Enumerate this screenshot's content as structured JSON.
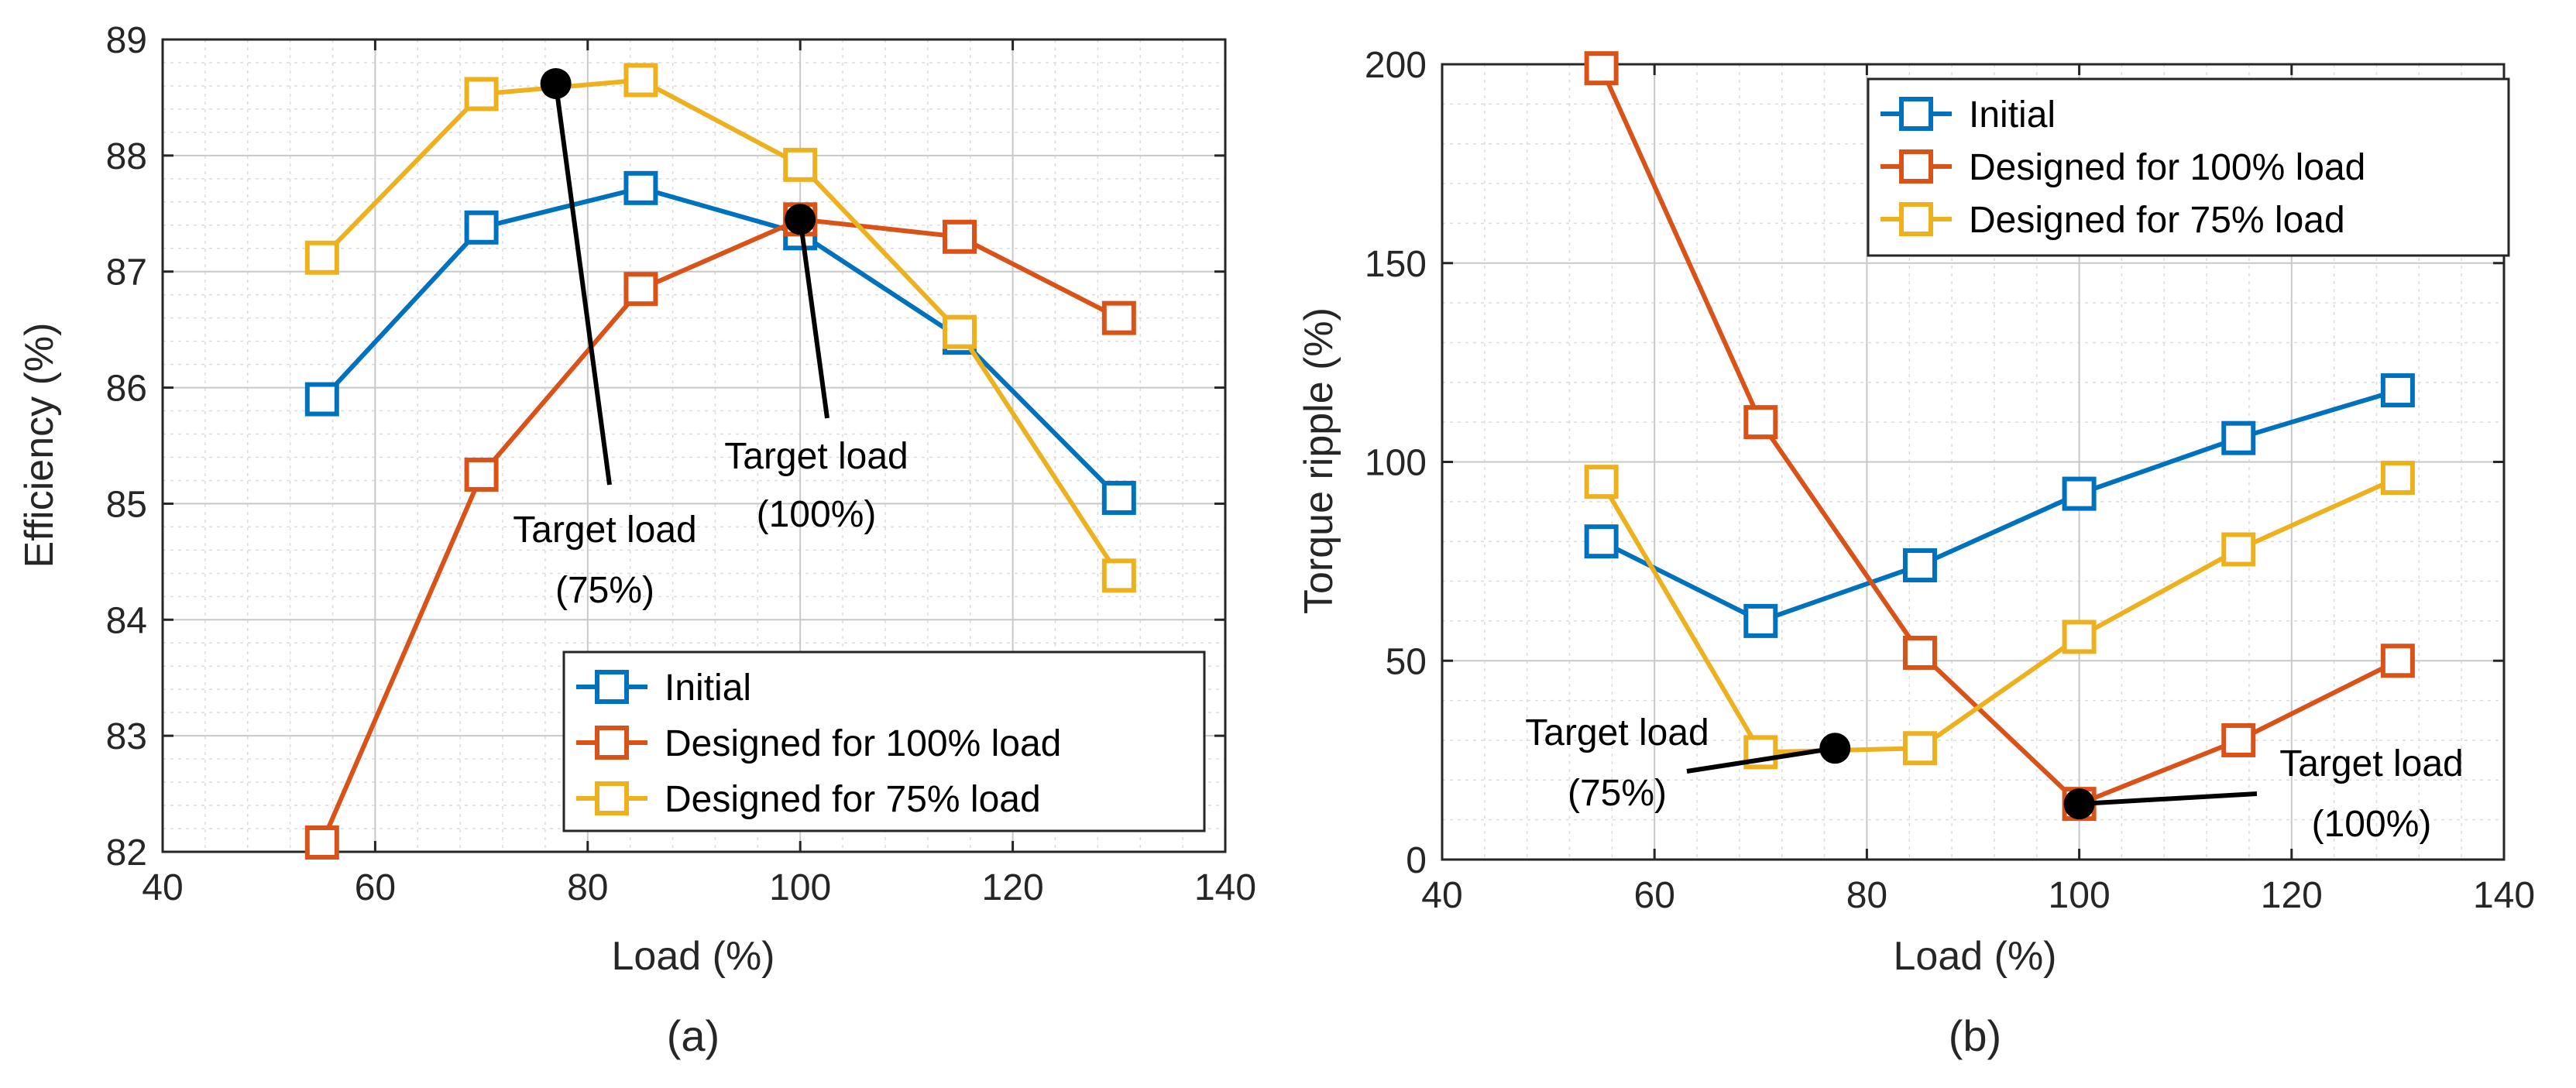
{
  "chart_data": [
    {
      "type": "line",
      "panel_label": "(a)",
      "xlabel": "Load (%)",
      "ylabel": "Efficiency (%)",
      "xlim": [
        40,
        140
      ],
      "ylim": [
        82,
        89
      ],
      "xticks": [
        40,
        60,
        80,
        100,
        120,
        140
      ],
      "yticks": [
        82,
        83,
        84,
        85,
        86,
        87,
        88,
        89
      ],
      "grid": true,
      "legend_position": "bottom-right",
      "x": [
        55,
        70,
        85,
        100,
        115,
        130
      ],
      "series": [
        {
          "name": "Initial",
          "color": "#0072BD",
          "values": [
            85.9,
            87.38,
            87.72,
            87.33,
            86.43,
            85.05
          ]
        },
        {
          "name": "Designed for 100% load",
          "color": "#D95319",
          "values": [
            82.08,
            85.25,
            86.85,
            87.45,
            87.3,
            86.6
          ]
        },
        {
          "name": "Designed for 75% load",
          "color": "#EDB120",
          "values": [
            87.12,
            88.53,
            88.65,
            87.92,
            86.48,
            84.38
          ]
        }
      ],
      "annotations": [
        {
          "label": "Target load (75%)",
          "lines": [
            "Target load",
            "(75%)"
          ],
          "point": [
            77,
            88.62
          ]
        },
        {
          "label": "Target load (100%)",
          "lines": [
            "Target load",
            "(100%)"
          ],
          "point": [
            100,
            87.45
          ]
        }
      ]
    },
    {
      "type": "line",
      "panel_label": "(b)",
      "xlabel": "Load (%)",
      "ylabel": "Torque ripple (%)",
      "xlim": [
        40,
        140
      ],
      "ylim": [
        0,
        200
      ],
      "xticks": [
        40,
        60,
        80,
        100,
        120,
        140
      ],
      "yticks": [
        0,
        50,
        100,
        150,
        200
      ],
      "grid": true,
      "legend_position": "top-right",
      "x": [
        55,
        70,
        85,
        100,
        115,
        130
      ],
      "series": [
        {
          "name": "Initial",
          "color": "#0072BD",
          "values": [
            80,
            60,
            74,
            92,
            106,
            118
          ]
        },
        {
          "name": "Designed for 100% load",
          "color": "#D95319",
          "values": [
            199,
            110,
            52,
            14,
            30,
            50
          ]
        },
        {
          "name": "Designed for 75% load",
          "color": "#EDB120",
          "values": [
            95,
            27,
            28,
            56,
            78,
            96
          ]
        }
      ],
      "annotations": [
        {
          "label": "Target load (75%)",
          "lines": [
            "Target load",
            "(75%)"
          ],
          "point": [
            77,
            28
          ]
        },
        {
          "label": "Target load (100%)",
          "lines": [
            "Target load",
            "(100%)"
          ],
          "point": [
            100,
            14
          ]
        }
      ]
    }
  ]
}
